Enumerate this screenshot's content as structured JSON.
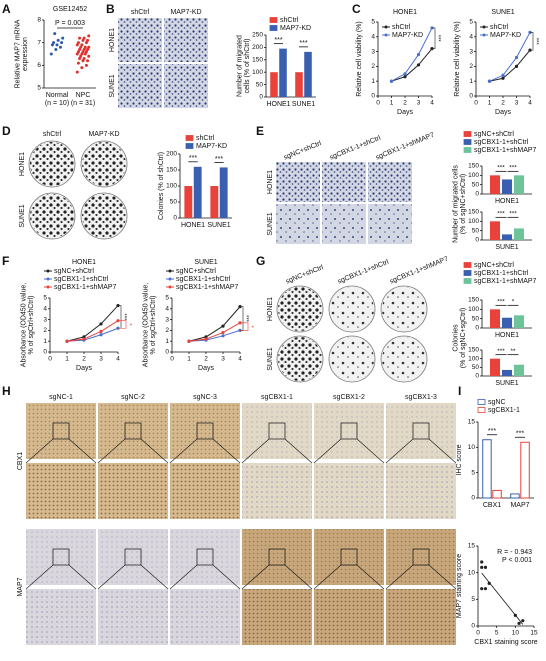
{
  "panel_letters": [
    "A",
    "B",
    "C",
    "D",
    "E",
    "F",
    "G",
    "H",
    "I"
  ],
  "image_panels": [
    {
      "columns": [
        "shCtrl",
        "MAP7-KD"
      ],
      "rows": [
        "HONE1",
        "SUNE1"
      ]
    },
    {
      "columns": [
        "shCtrl",
        "MAP7-KD"
      ],
      "rows": [
        "HONE1",
        "SUNE1"
      ]
    },
    {
      "columns": [
        "sgNC+shCtrl",
        "sgCBX1-1+shCtrl",
        "sgCBX1-1+shMAP7"
      ],
      "rows": [
        "HONE1",
        "SUNE1"
      ]
    },
    {
      "columns": [
        "sgNC+shCtrl",
        "sgCBX1-1+shCtrl",
        "sgCBX1-1+shMAP7"
      ],
      "rows": [
        "HONE1",
        "SUNE1"
      ]
    },
    {
      "columns": [
        "sgNC-1",
        "sgNC-2",
        "sgNC-3",
        "sgCBX1-1",
        "sgCBX1-2",
        "sgCBX1-3"
      ],
      "rows": [
        "CBX1",
        "MAP7"
      ]
    }
  ],
  "chart_data": [
    {
      "type": "strip",
      "title": "GSE12452",
      "ylabel": [
        "Relative MAP7 mRNA",
        "expression"
      ],
      "categories": [
        "Normal",
        "NPC"
      ],
      "category_notes": [
        "(n = 10)",
        "(n = 31)"
      ],
      "colors": [
        "#2f5aa8",
        "#e0302b"
      ],
      "values": [
        [
          6.5,
          6.7,
          6.8,
          6.9,
          6.9,
          7.0,
          7.0,
          7.1,
          7.2,
          7.4
        ],
        [
          5.7,
          5.9,
          6.0,
          6.1,
          6.2,
          6.2,
          6.3,
          6.3,
          6.4,
          6.4,
          6.5,
          6.5,
          6.5,
          6.6,
          6.6,
          6.6,
          6.7,
          6.7,
          6.7,
          6.8,
          6.8,
          6.8,
          6.9,
          6.9,
          7.0,
          7.0,
          7.1,
          7.1,
          7.2,
          7.2,
          7.3
        ]
      ],
      "ylim": [
        5,
        8
      ],
      "yticks": [
        5,
        6,
        7,
        8
      ],
      "annotations": [
        "P = 0.003"
      ]
    },
    {
      "type": "bar",
      "ylabel": [
        "Number of migrated",
        "cells (% of shCtrl)"
      ],
      "categories": [
        "HONE1",
        "SUNE1"
      ],
      "series": [
        {
          "name": "shCtrl",
          "color": "#e8423a",
          "values": [
            100,
            100
          ]
        },
        {
          "name": "MAP7-KD",
          "color": "#3a5fb0",
          "values": [
            195,
            182
          ]
        }
      ],
      "ylim": [
        0,
        250
      ],
      "yticks": [
        0,
        50,
        100,
        150,
        200,
        250
      ],
      "annotations": [
        "***",
        "***"
      ],
      "legend": true
    },
    {
      "type": "line",
      "title": "HONE1",
      "xlabel": "Days",
      "ylabel": [
        "Relative cell viability (%)"
      ],
      "x": [
        1,
        2,
        3,
        4
      ],
      "series": [
        {
          "name": "shCtrl",
          "color": "#222222",
          "values": [
            1,
            1.3,
            2.1,
            3.2
          ]
        },
        {
          "name": "MAP7-KD",
          "color": "#4a6fd0",
          "values": [
            1,
            1.5,
            2.8,
            4.6
          ]
        }
      ],
      "xlim": [
        0,
        4
      ],
      "xticks": [
        0,
        1,
        2,
        3,
        4
      ],
      "ylim": [
        0,
        5
      ],
      "yticks": [
        0,
        1,
        2,
        3,
        4,
        5
      ],
      "annotations": [
        "***"
      ],
      "legend": true
    },
    {
      "type": "line",
      "title": "SUNE1",
      "xlabel": "Days",
      "ylabel": [
        "Relative cell viability (%)"
      ],
      "x": [
        1,
        2,
        3,
        4
      ],
      "series": [
        {
          "name": "shCtrl",
          "color": "#222222",
          "values": [
            1,
            1.2,
            2.0,
            3.1
          ]
        },
        {
          "name": "MAP7-KD",
          "color": "#4a6fd0",
          "values": [
            1,
            1.4,
            2.6,
            4.3
          ]
        }
      ],
      "xlim": [
        0,
        4
      ],
      "xticks": [
        0,
        1,
        2,
        3,
        4
      ],
      "ylim": [
        0,
        5
      ],
      "yticks": [
        0,
        1,
        2,
        3,
        4,
        5
      ],
      "annotations": [
        "***"
      ],
      "legend": true
    },
    {
      "type": "bar",
      "ylabel": [
        "Colonies (% of shCtrl)"
      ],
      "categories": [
        "HONE1",
        "SUNE1"
      ],
      "series": [
        {
          "name": "shCtrl",
          "color": "#e8423a",
          "values": [
            100,
            100
          ]
        },
        {
          "name": "MAP7-KD",
          "color": "#3a5fb0",
          "values": [
            160,
            158
          ]
        }
      ],
      "ylim": [
        0,
        200
      ],
      "yticks": [
        0,
        50,
        100,
        150,
        200
      ],
      "annotations": [
        "***",
        "***"
      ],
      "legend": true
    },
    {
      "type": "bar",
      "ylabel": [
        "Number of migrated cells",
        "(% of sgNC+shCtrl)"
      ],
      "categories": [
        "HONE1"
      ],
      "series": [
        {
          "name": "sgNC+shCtrl",
          "color": "#e8423a",
          "values": [
            100
          ]
        },
        {
          "name": "sgCBX1-1+shCtrl",
          "color": "#3a5fb0",
          "values": [
            78
          ]
        },
        {
          "name": "sgCBX1-1+shMAP7",
          "color": "#6ec49a",
          "values": [
            100
          ]
        }
      ],
      "ylim": [
        0,
        150
      ],
      "yticks": [
        0,
        50,
        100,
        150
      ],
      "annotations": [
        "***",
        "***"
      ],
      "legend": true
    },
    {
      "type": "bar",
      "categories": [
        "SUNE1"
      ],
      "series": [
        {
          "color": "#e8423a",
          "values": [
            100
          ]
        },
        {
          "color": "#3a5fb0",
          "values": [
            30
          ]
        },
        {
          "color": "#6ec49a",
          "values": [
            62
          ]
        }
      ],
      "ylim": [
        0,
        150
      ],
      "yticks": [
        0,
        50,
        100,
        150
      ],
      "annotations": [
        "***",
        "***"
      ]
    },
    {
      "type": "line",
      "title": "HONE1",
      "xlabel": "Days",
      "ylabel": [
        "Absorbance (OD450 value,",
        "% of sgCtrl+shCtrl)"
      ],
      "x": [
        1,
        2,
        3,
        4
      ],
      "series": [
        {
          "name": "sgNC+shCtrl",
          "color": "#222222",
          "values": [
            1,
            1.4,
            2.6,
            4.3
          ]
        },
        {
          "name": "sgCBX1-1+shCtrl",
          "color": "#4a6fd0",
          "values": [
            1,
            1.1,
            1.6,
            2.2
          ]
        },
        {
          "name": "sgCBX1-1+shMAP7",
          "color": "#e8423a",
          "values": [
            1,
            1.2,
            1.9,
            2.9
          ]
        }
      ],
      "xlim": [
        0,
        4
      ],
      "xticks": [
        0,
        1,
        2,
        3,
        4
      ],
      "ylim": [
        0,
        5
      ],
      "yticks": [
        0,
        1,
        2,
        3,
        4,
        5
      ],
      "annotations": [
        "***",
        "*"
      ],
      "legend": true
    },
    {
      "type": "line",
      "title": "SUNE1",
      "xlabel": "Days",
      "ylabel": [
        "Absorbance (OD450 value,",
        "% of sgCtrl+shCtrl)"
      ],
      "x": [
        1,
        2,
        3,
        4
      ],
      "series": [
        {
          "name": "sgNC+shCtrl",
          "color": "#222222",
          "values": [
            1,
            1.4,
            2.4,
            4.2
          ]
        },
        {
          "name": "sgCBX1-1+shCtrl",
          "color": "#4a6fd0",
          "values": [
            1,
            1.1,
            1.5,
            2.0
          ]
        },
        {
          "name": "sgCBX1-1+shMAP7",
          "color": "#e8423a",
          "values": [
            1,
            1.2,
            1.8,
            2.7
          ]
        }
      ],
      "xlim": [
        0,
        4
      ],
      "xticks": [
        0,
        1,
        2,
        3,
        4
      ],
      "ylim": [
        0,
        5
      ],
      "yticks": [
        0,
        1,
        2,
        3,
        4,
        5
      ],
      "annotations": [
        "***",
        "*"
      ],
      "legend": true
    },
    {
      "type": "bar",
      "ylabel": [
        "Colonies",
        "(% of sgNC+sgCtrl)"
      ],
      "categories": [
        "HONE1"
      ],
      "series": [
        {
          "name": "sgNC+shCtrl",
          "color": "#e8423a",
          "values": [
            100
          ]
        },
        {
          "name": "sgCBX1-1+shCtrl",
          "color": "#3a5fb0",
          "values": [
            55
          ]
        },
        {
          "name": "sgCBX1-1+shMAP7",
          "color": "#6ec49a",
          "values": [
            68
          ]
        }
      ],
      "ylim": [
        0,
        150
      ],
      "yticks": [
        0,
        50,
        100,
        150
      ],
      "annotations": [
        "***",
        "*"
      ],
      "legend": true
    },
    {
      "type": "bar",
      "categories": [
        "SUNE1"
      ],
      "series": [
        {
          "color": "#e8423a",
          "values": [
            100
          ]
        },
        {
          "color": "#3a5fb0",
          "values": [
            35
          ]
        },
        {
          "color": "#6ec49a",
          "values": [
            65
          ]
        }
      ],
      "ylim": [
        0,
        150
      ],
      "yticks": [
        0,
        50,
        100,
        150
      ],
      "annotations": [
        "***",
        "**"
      ]
    },
    {
      "type": "bar",
      "bar_fill": "none",
      "ylabel": [
        "IHC score"
      ],
      "categories": [
        "CBX1",
        "MAP7"
      ],
      "series": [
        {
          "name": "sgNC",
          "color": "#3a5fb0",
          "values": [
            11.5,
            0.8
          ]
        },
        {
          "name": "sgCBX1-1",
          "color": "#e8423a",
          "values": [
            1.5,
            11
          ]
        }
      ],
      "ylim": [
        0,
        15
      ],
      "yticks": [
        0,
        5,
        10,
        15
      ],
      "annotations": [
        "***",
        "***"
      ],
      "legend": true
    },
    {
      "type": "scatter",
      "xlabel": "CBX1 staining score",
      "ylabel": [
        "MAP7 staining score"
      ],
      "color": "#222222",
      "x": [
        1,
        1,
        2,
        1,
        2,
        3,
        10,
        12,
        11
      ],
      "y": [
        12,
        11,
        11,
        7,
        7,
        8,
        2,
        1,
        0.5
      ],
      "xlim": [
        0,
        15
      ],
      "xticks": [
        0,
        5,
        10,
        15
      ],
      "ylim": [
        0,
        15
      ],
      "yticks": [
        0,
        5,
        10,
        15
      ],
      "annotations": [
        "R = - 0.943",
        "P < 0.001"
      ]
    }
  ]
}
